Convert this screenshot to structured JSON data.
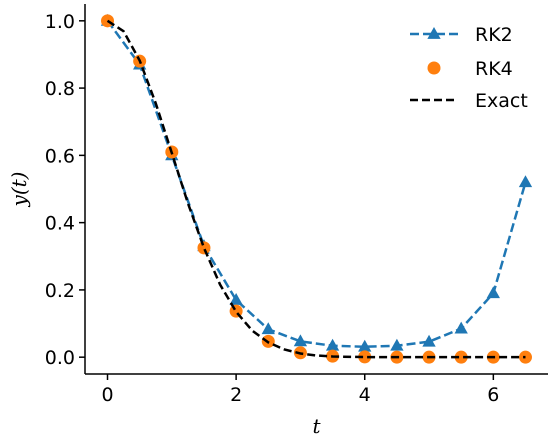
{
  "chart_data": {
    "type": "line",
    "title": "",
    "xlabel": "t",
    "ylabel": "y(t)",
    "xlim": [
      -0.35,
      6.85
    ],
    "ylim": [
      -0.05,
      1.05
    ],
    "xticks": [
      0,
      2,
      4,
      6
    ],
    "yticks": [
      0.0,
      0.2,
      0.4,
      0.6,
      0.8,
      1.0
    ],
    "xtick_labels": [
      "0",
      "2",
      "4",
      "6"
    ],
    "ytick_labels": [
      "0.0",
      "0.2",
      "0.4",
      "0.6",
      "0.8",
      "1.0"
    ],
    "grid": false,
    "legend_position": "top-right",
    "series": [
      {
        "name": "RK2",
        "color": "#1f77b4",
        "style": "dashed-with-triangle-markers",
        "x": [
          0,
          0.5,
          1.0,
          1.5,
          2.0,
          2.5,
          3.0,
          3.5,
          4.0,
          4.5,
          5.0,
          5.5,
          6.0,
          6.5
        ],
        "y": [
          1.0,
          0.87,
          0.6,
          0.33,
          0.17,
          0.083,
          0.047,
          0.034,
          0.031,
          0.034,
          0.046,
          0.085,
          0.19,
          0.52
        ]
      },
      {
        "name": "RK4",
        "color": "#ff7f0e",
        "style": "circle-markers",
        "x": [
          0,
          0.5,
          1.0,
          1.5,
          2.0,
          2.5,
          3.0,
          3.5,
          4.0,
          4.5,
          5.0,
          5.5,
          6.0,
          6.5
        ],
        "y": [
          1.0,
          0.88,
          0.61,
          0.325,
          0.137,
          0.047,
          0.013,
          0.003,
          0.001,
          0.0,
          0.0,
          0.0,
          0.0,
          0.0
        ]
      },
      {
        "name": "Exact",
        "color": "#000000",
        "style": "dashed-line",
        "x": [
          0,
          0.25,
          0.5,
          0.75,
          1.0,
          1.25,
          1.5,
          1.75,
          2.0,
          2.25,
          2.5,
          2.75,
          3.0,
          3.25,
          3.5,
          4.0,
          4.5,
          5.0,
          5.5,
          6.0,
          6.5
        ],
        "y": [
          1.0,
          0.969,
          0.882,
          0.755,
          0.607,
          0.458,
          0.325,
          0.216,
          0.135,
          0.079,
          0.044,
          0.023,
          0.011,
          0.005,
          0.002,
          0.0003,
          0.0,
          0.0,
          0.0,
          0.0,
          0.0
        ]
      }
    ]
  }
}
